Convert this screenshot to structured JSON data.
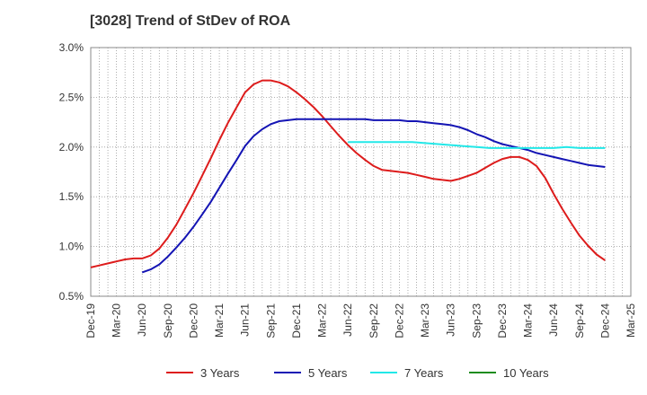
{
  "chart_data": {
    "type": "line",
    "title": "[3028]  Trend of StDev of ROA",
    "xlabel": "",
    "ylabel": "",
    "categories": [
      "Dec-19",
      "Mar-20",
      "Jun-20",
      "Sep-20",
      "Dec-20",
      "Mar-21",
      "Jun-21",
      "Sep-21",
      "Dec-21",
      "Mar-22",
      "Jun-22",
      "Sep-22",
      "Dec-22",
      "Mar-23",
      "Jun-23",
      "Sep-23",
      "Dec-23",
      "Mar-24",
      "Jun-24",
      "Sep-24",
      "Dec-24",
      "Mar-25"
    ],
    "y_ticks": [
      "0.5%",
      "1.0%",
      "1.5%",
      "2.0%",
      "2.5%",
      "3.0%"
    ],
    "ylim": [
      0.5,
      3.0
    ],
    "grid": "dotted",
    "legend_position": "bottom",
    "series": [
      {
        "name": "3 Years",
        "color": "#dd1c1c",
        "x": [
          0,
          0.33,
          0.67,
          1,
          1.33,
          1.67,
          2,
          2.33,
          2.67,
          3,
          3.33,
          3.67,
          4,
          4.33,
          4.67,
          5,
          5.33,
          5.67,
          6,
          6.33,
          6.67,
          7,
          7.33,
          7.67,
          8,
          8.33,
          8.67,
          9,
          9.33,
          9.67,
          10,
          10.33,
          10.67,
          11,
          11.33,
          11.67,
          12,
          12.33,
          12.67,
          13,
          13.33,
          13.67,
          14,
          14.33,
          14.67,
          15,
          15.33,
          15.67,
          16,
          16.33,
          16.67,
          17,
          17.33,
          17.67,
          18,
          18.33,
          18.67,
          19,
          19.33,
          19.67,
          20
        ],
        "values": [
          0.79,
          0.81,
          0.83,
          0.85,
          0.87,
          0.88,
          0.88,
          0.91,
          0.98,
          1.09,
          1.22,
          1.38,
          1.54,
          1.71,
          1.89,
          2.07,
          2.24,
          2.4,
          2.55,
          2.63,
          2.67,
          2.67,
          2.65,
          2.61,
          2.55,
          2.48,
          2.4,
          2.31,
          2.21,
          2.11,
          2.02,
          1.94,
          1.87,
          1.81,
          1.77,
          1.76,
          1.75,
          1.74,
          1.72,
          1.7,
          1.68,
          1.67,
          1.66,
          1.68,
          1.71,
          1.74,
          1.79,
          1.84,
          1.88,
          1.9,
          1.9,
          1.87,
          1.81,
          1.69,
          1.53,
          1.38,
          1.24,
          1.11,
          1.01,
          0.92,
          0.86
        ]
      },
      {
        "name": "5 Years",
        "color": "#1414b4",
        "x": [
          2,
          2.33,
          2.67,
          3,
          3.33,
          3.67,
          4,
          4.33,
          4.67,
          5,
          5.33,
          5.67,
          6,
          6.33,
          6.67,
          7,
          7.33,
          7.67,
          8,
          8.33,
          8.67,
          9,
          9.33,
          9.67,
          10,
          10.33,
          10.67,
          11,
          11.33,
          11.67,
          12,
          12.33,
          12.67,
          13,
          13.33,
          13.67,
          14,
          14.33,
          14.67,
          15,
          15.33,
          15.67,
          16,
          16.33,
          16.67,
          17,
          17.33,
          17.67,
          18,
          18.33,
          18.67,
          19,
          19.33,
          19.67,
          20
        ],
        "values": [
          0.74,
          0.77,
          0.82,
          0.9,
          0.99,
          1.09,
          1.2,
          1.32,
          1.45,
          1.59,
          1.73,
          1.87,
          2.01,
          2.11,
          2.18,
          2.23,
          2.26,
          2.27,
          2.28,
          2.28,
          2.28,
          2.28,
          2.28,
          2.28,
          2.28,
          2.28,
          2.28,
          2.27,
          2.27,
          2.27,
          2.27,
          2.26,
          2.26,
          2.25,
          2.24,
          2.23,
          2.22,
          2.2,
          2.17,
          2.13,
          2.1,
          2.06,
          2.03,
          2.01,
          1.99,
          1.97,
          1.94,
          1.92,
          1.9,
          1.88,
          1.86,
          1.84,
          1.82,
          1.81,
          1.8
        ]
      },
      {
        "name": "7 Years",
        "color": "#22e8e8",
        "x": [
          10,
          10.5,
          11,
          11.5,
          12,
          12.5,
          13,
          13.5,
          14,
          14.5,
          15,
          15.5,
          16,
          16.5,
          17,
          17.5,
          18,
          18.5,
          19,
          19.5,
          20
        ],
        "values": [
          2.05,
          2.05,
          2.05,
          2.05,
          2.05,
          2.05,
          2.04,
          2.03,
          2.02,
          2.01,
          2.0,
          1.99,
          1.99,
          1.99,
          1.99,
          1.99,
          1.99,
          2.0,
          1.99,
          1.99,
          1.99
        ]
      },
      {
        "name": "10 Years",
        "color": "#1e8c1e",
        "x": [],
        "values": []
      }
    ]
  }
}
